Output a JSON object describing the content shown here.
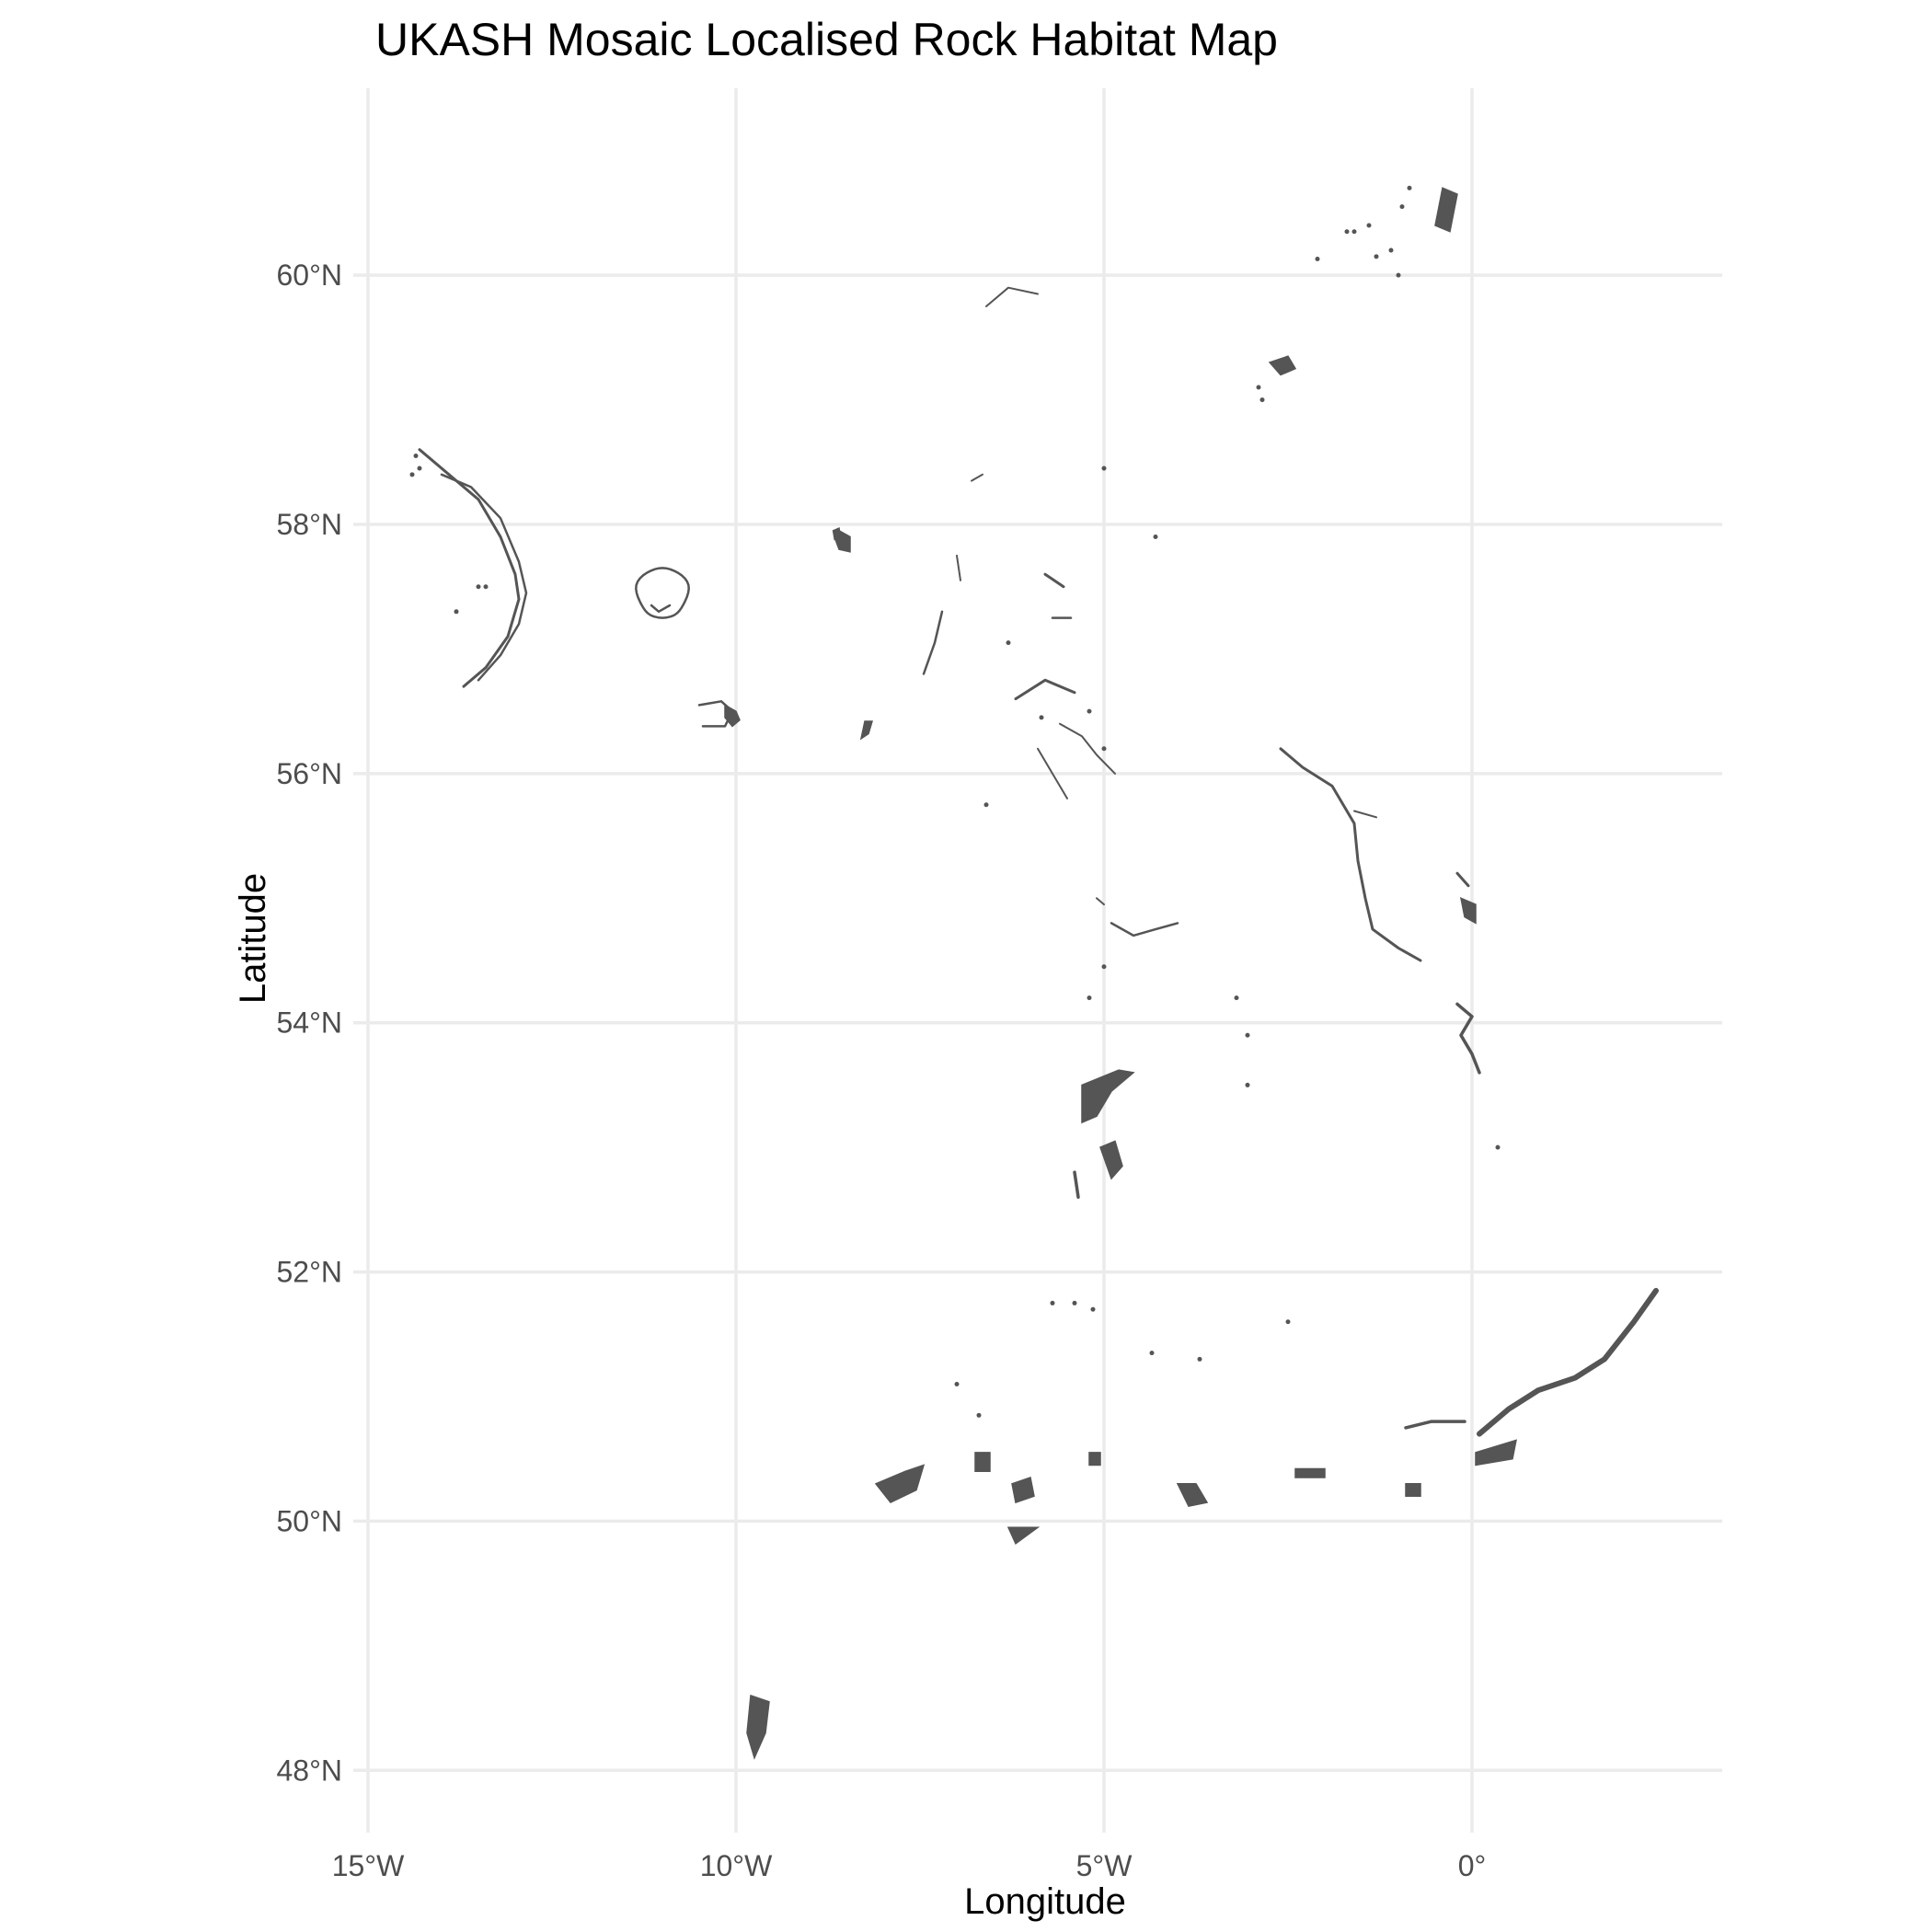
{
  "chart_data": {
    "type": "map",
    "title": "UKASH Mosaic Localised Rock Habitat Map",
    "xlabel": "Longitude",
    "ylabel": "Latitude",
    "xlim": [
      -15.2,
      3.4
    ],
    "ylim": [
      47.5,
      61.5
    ],
    "grid": true,
    "x_ticks": [
      {
        "value": -15,
        "label": "15°W"
      },
      {
        "value": -10,
        "label": "10°W"
      },
      {
        "value": -5,
        "label": "5°W"
      },
      {
        "value": 0,
        "label": "0°"
      }
    ],
    "y_ticks": [
      {
        "value": 48,
        "label": "48°N"
      },
      {
        "value": 50,
        "label": "50°N"
      },
      {
        "value": 52,
        "label": "52°N"
      },
      {
        "value": 54,
        "label": "54°N"
      },
      {
        "value": 56,
        "label": "56°N"
      },
      {
        "value": 58,
        "label": "58°N"
      },
      {
        "value": 60,
        "label": "60°N"
      }
    ],
    "feature_color": "#555555",
    "highlight_colors": [
      "#e05a5a",
      "#3d2a7a",
      "#2f3aa0"
    ]
  }
}
